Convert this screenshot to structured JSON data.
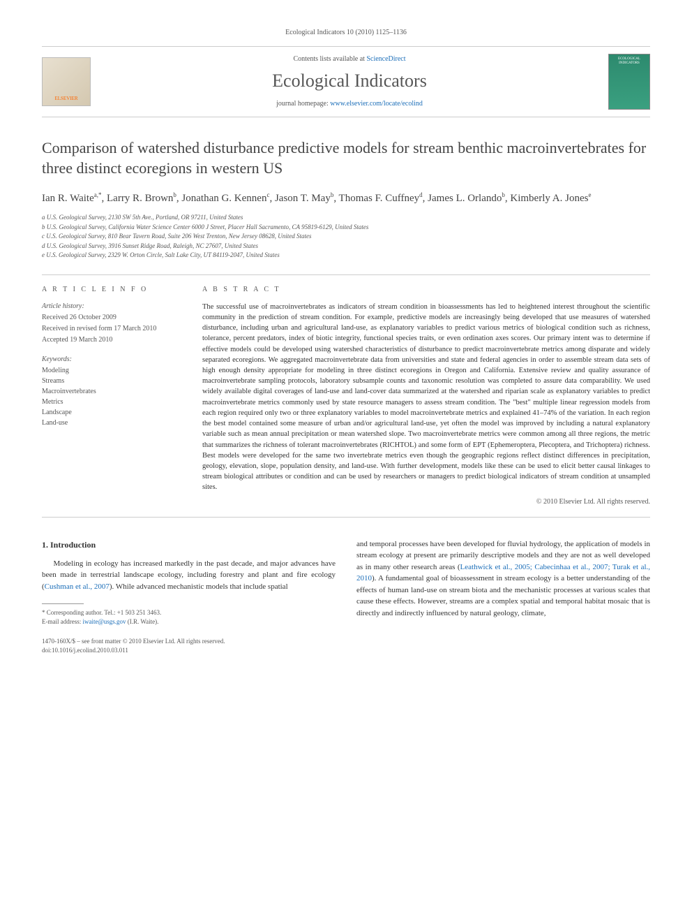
{
  "citation": "Ecological Indicators 10 (2010) 1125–1136",
  "header": {
    "publisher_logo": "ELSEVIER",
    "contents_prefix": "Contents lists available at ",
    "contents_link": "ScienceDirect",
    "journal_name": "Ecological Indicators",
    "homepage_prefix": "journal homepage: ",
    "homepage_url": "www.elsevier.com/locate/ecolind",
    "cover_text": "ECOLOGICAL INDICATORS"
  },
  "title": "Comparison of watershed disturbance predictive models for stream benthic macroinvertebrates for three distinct ecoregions in western US",
  "authors_html": "Ian R. Waite<sup>a,*</sup>, Larry R. Brown<sup>b</sup>, Jonathan G. Kennen<sup>c</sup>, Jason T. May<sup>b</sup>, Thomas F. Cuffney<sup>d</sup>, James L. Orlando<sup>b</sup>, Kimberly A. Jones<sup>e</sup>",
  "affiliations": [
    "a U.S. Geological Survey, 2130 SW 5th Ave., Portland, OR 97211, United States",
    "b U.S. Geological Survey, California Water Science Center 6000 J Street, Placer Hall Sacramento, CA 95819-6129, United States",
    "c U.S. Geological Survey, 810 Bear Tavern Road, Suite 206 West Trenton, New Jersey 08628, United States",
    "d U.S. Geological Survey, 3916 Sunset Ridge Road, Raleigh, NC 27607, United States",
    "e U.S. Geological Survey, 2329 W. Orton Circle, Salt Lake City, UT 84119-2047, United States"
  ],
  "info": {
    "heading": "A R T I C L E   I N F O",
    "history_label": "Article history:",
    "history": [
      "Received 26 October 2009",
      "Received in revised form 17 March 2010",
      "Accepted 19 March 2010"
    ],
    "keywords_label": "Keywords:",
    "keywords": [
      "Modeling",
      "Streams",
      "Macroinvertebrates",
      "Metrics",
      "Landscape",
      "Land-use"
    ]
  },
  "abstract": {
    "heading": "A B S T R A C T",
    "text": "The successful use of macroinvertebrates as indicators of stream condition in bioassessments has led to heightened interest throughout the scientific community in the prediction of stream condition. For example, predictive models are increasingly being developed that use measures of watershed disturbance, including urban and agricultural land-use, as explanatory variables to predict various metrics of biological condition such as richness, tolerance, percent predators, index of biotic integrity, functional species traits, or even ordination axes scores. Our primary intent was to determine if effective models could be developed using watershed characteristics of disturbance to predict macroinvertebrate metrics among disparate and widely separated ecoregions. We aggregated macroinvertebrate data from universities and state and federal agencies in order to assemble stream data sets of high enough density appropriate for modeling in three distinct ecoregions in Oregon and California. Extensive review and quality assurance of macroinvertebrate sampling protocols, laboratory subsample counts and taxonomic resolution was completed to assure data comparability. We used widely available digital coverages of land-use and land-cover data summarized at the watershed and riparian scale as explanatory variables to predict macroinvertebrate metrics commonly used by state resource managers to assess stream condition. The \"best\" multiple linear regression models from each region required only two or three explanatory variables to model macroinvertebrate metrics and explained 41–74% of the variation. In each region the best model contained some measure of urban and/or agricultural land-use, yet often the model was improved by including a natural explanatory variable such as mean annual precipitation or mean watershed slope. Two macroinvertebrate metrics were common among all three regions, the metric that summarizes the richness of tolerant macroinvertebrates (RICHTOL) and some form of EPT (Ephemeroptera, Plecoptera, and Trichoptera) richness. Best models were developed for the same two invertebrate metrics even though the geographic regions reflect distinct differences in precipitation, geology, elevation, slope, population density, and land-use. With further development, models like these can be used to elicit better causal linkages to stream biological attributes or condition and can be used by researchers or managers to predict biological indicators of stream condition at unsampled sites.",
    "copyright": "© 2010 Elsevier Ltd. All rights reserved."
  },
  "body": {
    "section_number": "1.",
    "section_title": "Introduction",
    "col1_p1_pre": "Modeling in ecology has increased markedly in the past decade, and major advances have been made in terrestrial landscape ecology, including forestry and plant and fire ecology (",
    "col1_p1_link": "Cushman et al., 2007",
    "col1_p1_post": "). While advanced mechanistic models that include spatial",
    "col2_p1_pre": "and temporal processes have been developed for fluvial hydrology, the application of models in stream ecology at present are primarily descriptive models and they are not as well developed as in many other research areas (",
    "col2_p1_link": "Leathwick et al., 2005; Cabecinhaa et al., 2007; Turak et al., 2010",
    "col2_p1_post": "). A fundamental goal of bioassessment in stream ecology is a better understanding of the effects of human land-use on stream biota and the mechanistic processes at various scales that cause these effects. However, streams are a complex spatial and temporal habitat mosaic that is directly and indirectly influenced by natural geology, climate,"
  },
  "footnote": {
    "corr_label": "* Corresponding author. Tel.: +1 503 251 3463.",
    "email_label": "E-mail address: ",
    "email": "iwaite@usgs.gov",
    "email_suffix": " (I.R. Waite)."
  },
  "bottom": {
    "line1": "1470-160X/$ – see front matter © 2010 Elsevier Ltd. All rights reserved.",
    "line2": "doi:10.1016/j.ecolind.2010.03.011"
  },
  "colors": {
    "link": "#1a6db8",
    "text": "#333333",
    "muted": "#555555",
    "rule": "#cccccc",
    "cover_bg": "#2d8a6e",
    "publisher": "#ff6600"
  }
}
